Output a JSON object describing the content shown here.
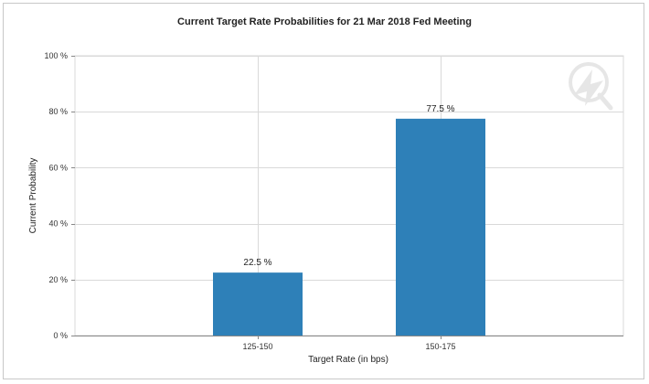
{
  "chart_data": {
    "type": "bar",
    "title": "Current Target Rate Probabilities for 21 Mar 2018 Fed Meeting",
    "xlabel": "Target Rate (in bps)",
    "ylabel": "Current Probability",
    "categories": [
      "125-150",
      "150-175"
    ],
    "values": [
      22.5,
      77.5
    ],
    "data_labels": [
      "22.5 %",
      "77.5 %"
    ],
    "ylim": [
      0,
      100
    ],
    "yticks": [
      0,
      20,
      40,
      60,
      80,
      100
    ],
    "ytick_labels": [
      "0 %",
      "20 %",
      "40 %",
      "60 %",
      "80 %",
      "100 %"
    ],
    "grid": true,
    "bar_color": "#2e80b8",
    "grid_color": "#d9d9d9"
  }
}
